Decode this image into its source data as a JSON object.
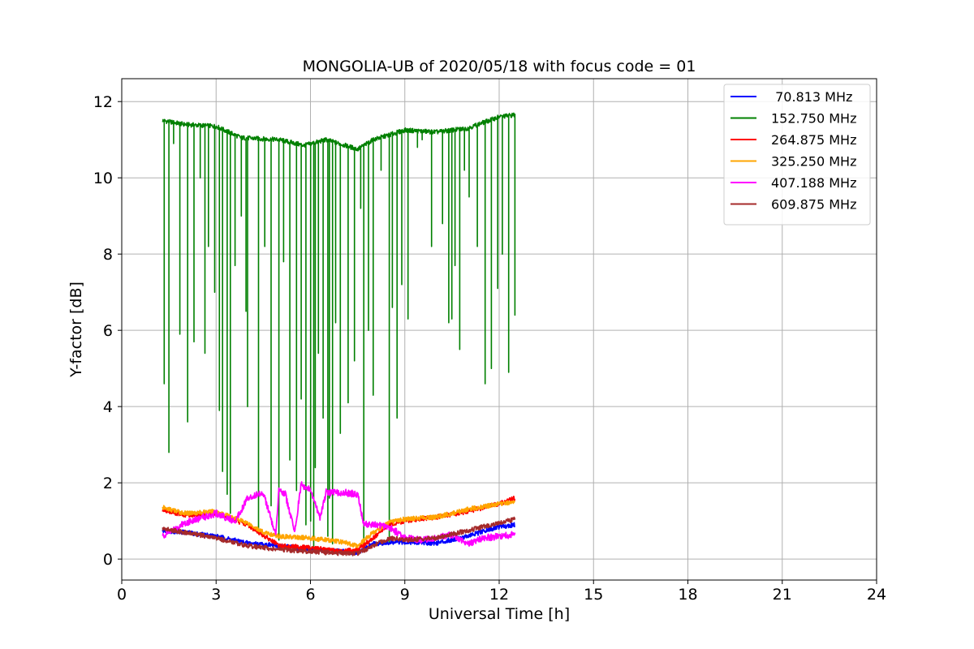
{
  "chart_data": {
    "type": "line",
    "title": "MONGOLIA-UB of 2020/05/18 with focus code = 01",
    "xlabel": "Universal Time [h]",
    "ylabel": "Y-factor [dB]",
    "xlim": [
      0,
      24
    ],
    "ylim": [
      -0.55,
      12.6
    ],
    "xticks": [
      0,
      3,
      6,
      9,
      12,
      15,
      18,
      21,
      24
    ],
    "yticks": [
      0,
      2,
      4,
      6,
      8,
      10,
      12
    ],
    "grid": true,
    "legend_position": "top-right",
    "series": [
      {
        "name": " 70.813 MHz",
        "color": "#0000ff",
        "x": [
          1.3,
          2.0,
          3.0,
          4.0,
          5.0,
          6.0,
          7.0,
          7.5,
          8.0,
          9.0,
          10.0,
          11.0,
          12.0,
          12.5
        ],
        "y": [
          0.75,
          0.7,
          0.6,
          0.42,
          0.35,
          0.25,
          0.2,
          0.15,
          0.4,
          0.45,
          0.42,
          0.6,
          0.85,
          0.9
        ]
      },
      {
        "name": "152.750 MHz",
        "color": "#008000",
        "x": [
          1.3,
          2.0,
          3.0,
          3.8,
          5.0,
          5.8,
          6.5,
          7.3,
          7.5,
          8.0,
          9.0,
          10.0,
          11.0,
          12.0,
          12.5
        ],
        "y": [
          11.5,
          11.4,
          11.35,
          11.05,
          11.0,
          10.85,
          11.0,
          10.8,
          10.75,
          11.0,
          11.25,
          11.2,
          11.3,
          11.6,
          11.65
        ],
        "dips": [
          [
            1.35,
            4.6
          ],
          [
            1.5,
            2.8
          ],
          [
            1.65,
            10.9
          ],
          [
            1.85,
            5.9
          ],
          [
            2.1,
            3.6
          ],
          [
            2.3,
            5.7
          ],
          [
            2.5,
            10.0
          ],
          [
            2.65,
            5.4
          ],
          [
            2.75,
            8.2
          ],
          [
            2.95,
            7.0
          ],
          [
            3.1,
            3.9
          ],
          [
            3.2,
            2.3
          ],
          [
            3.35,
            1.7
          ],
          [
            3.45,
            1.2
          ],
          [
            3.6,
            7.7
          ],
          [
            3.8,
            9.0
          ],
          [
            3.95,
            6.5
          ],
          [
            4.0,
            4.0
          ],
          [
            4.35,
            0.8
          ],
          [
            4.55,
            8.2
          ],
          [
            4.75,
            1.4
          ],
          [
            5.0,
            0.5
          ],
          [
            5.15,
            7.8
          ],
          [
            5.35,
            2.6
          ],
          [
            5.55,
            1.8
          ],
          [
            5.7,
            4.2
          ],
          [
            5.85,
            0.9
          ],
          [
            6.0,
            1.0
          ],
          [
            6.1,
            0.2
          ],
          [
            6.15,
            2.4
          ],
          [
            6.25,
            5.4
          ],
          [
            6.4,
            3.7
          ],
          [
            6.55,
            0.6
          ],
          [
            6.6,
            1.6
          ],
          [
            6.7,
            0.4
          ],
          [
            6.8,
            6.2
          ],
          [
            6.95,
            3.3
          ],
          [
            7.2,
            4.1
          ],
          [
            7.4,
            5.2
          ],
          [
            7.6,
            9.2
          ],
          [
            7.7,
            0.3
          ],
          [
            7.85,
            6.0
          ],
          [
            8.0,
            4.3
          ],
          [
            8.25,
            10.2
          ],
          [
            8.5,
            0.4
          ],
          [
            8.6,
            6.6
          ],
          [
            8.75,
            3.7
          ],
          [
            8.9,
            7.2
          ],
          [
            9.1,
            6.3
          ],
          [
            9.4,
            10.8
          ],
          [
            9.55,
            11.0
          ],
          [
            9.85,
            8.2
          ],
          [
            10.2,
            8.8
          ],
          [
            10.4,
            6.2
          ],
          [
            10.5,
            6.3
          ],
          [
            10.6,
            7.7
          ],
          [
            10.75,
            5.5
          ],
          [
            10.9,
            10.2
          ],
          [
            11.05,
            9.5
          ],
          [
            11.3,
            8.2
          ],
          [
            11.55,
            4.6
          ],
          [
            11.75,
            5.0
          ],
          [
            11.95,
            7.1
          ],
          [
            12.1,
            8.0
          ],
          [
            12.3,
            4.9
          ],
          [
            12.5,
            6.4
          ]
        ]
      },
      {
        "name": "264.875 MHz",
        "color": "#ff0000",
        "x": [
          1.3,
          2.0,
          3.0,
          4.0,
          5.0,
          6.0,
          7.0,
          7.5,
          8.0,
          8.5,
          9.0,
          10.0,
          11.0,
          12.0,
          12.5
        ],
        "y": [
          1.3,
          1.15,
          1.2,
          0.9,
          0.35,
          0.3,
          0.2,
          0.25,
          0.55,
          0.9,
          1.0,
          1.1,
          1.25,
          1.45,
          1.6
        ]
      },
      {
        "name": "325.250 MHz",
        "color": "#ffa500",
        "x": [
          1.3,
          2.0,
          3.0,
          4.0,
          4.5,
          5.0,
          6.0,
          7.0,
          7.5,
          8.0,
          8.5,
          9.0,
          10.0,
          11.0,
          12.0,
          12.5
        ],
        "y": [
          1.35,
          1.2,
          1.25,
          0.95,
          0.7,
          0.6,
          0.55,
          0.45,
          0.35,
          0.7,
          0.95,
          1.05,
          1.1,
          1.3,
          1.45,
          1.5
        ]
      },
      {
        "name": "407.188 MHz",
        "color": "#ff00ff",
        "x": [
          1.3,
          2.0,
          3.0,
          3.6,
          4.0,
          4.5,
          4.9,
          5.0,
          5.2,
          5.5,
          5.7,
          6.0,
          6.3,
          6.5,
          7.0,
          7.5,
          7.7,
          8.0,
          8.5,
          9.0,
          9.5,
          10.0,
          10.5,
          11.0,
          11.5,
          12.0,
          12.5
        ],
        "y": [
          0.6,
          0.95,
          1.2,
          1.0,
          1.6,
          1.75,
          0.6,
          1.85,
          1.7,
          0.7,
          1.95,
          1.8,
          1.1,
          1.75,
          1.75,
          1.7,
          0.9,
          0.9,
          0.85,
          0.55,
          0.5,
          0.55,
          0.65,
          0.4,
          0.55,
          0.6,
          0.65
        ]
      },
      {
        "name": "609.875 MHz",
        "color": "#a52a2a",
        "x": [
          1.3,
          2.0,
          3.0,
          4.0,
          5.0,
          6.0,
          7.0,
          7.5,
          8.0,
          8.5,
          9.0,
          10.0,
          11.0,
          12.0,
          12.5
        ],
        "y": [
          0.8,
          0.7,
          0.55,
          0.35,
          0.25,
          0.2,
          0.15,
          0.15,
          0.35,
          0.55,
          0.5,
          0.55,
          0.75,
          0.95,
          1.05
        ]
      }
    ]
  }
}
